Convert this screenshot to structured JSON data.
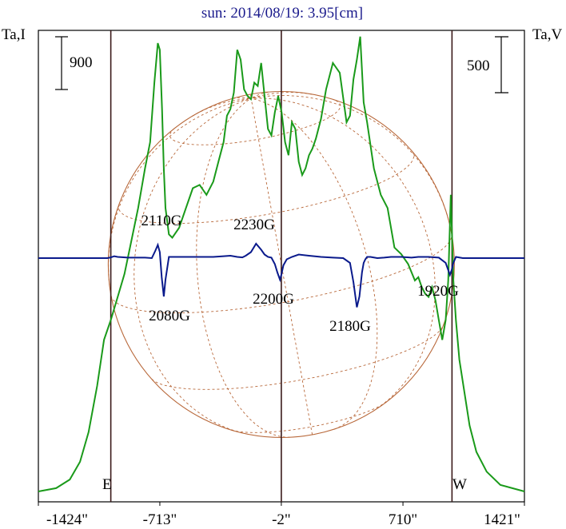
{
  "chart_data": {
    "type": "line",
    "title": "sun: 2014/08/19: 3.95[cm]",
    "ylabel_left": "Ta,I",
    "ylabel_right": "Ta,V",
    "scale_left": "900",
    "scale_right": "500",
    "xlim": [
      -1424,
      1421
    ],
    "x_ticks": [
      {
        "value": -1424,
        "label": "-1424\""
      },
      {
        "value": -713,
        "label": "-713\""
      },
      {
        "value": -2,
        "label": "-2\""
      },
      {
        "value": 710,
        "label": "710\""
      },
      {
        "value": 1421,
        "label": "1421\""
      }
    ],
    "limb_labels": {
      "east": "E",
      "west": "W"
    },
    "limb_lines": [
      -1000,
      -2,
      997
    ],
    "colors": {
      "intensity": "#1a9a1a",
      "polarization": "#0a1a8c",
      "sun_grid": "#b8683a",
      "title": "#1a1a8c",
      "axis": "#000000"
    },
    "series": [
      {
        "name": "Ta,I",
        "units": "scale 900 per bar",
        "x": [
          -1424,
          -1320,
          -1240,
          -1180,
          -1130,
          -1080,
          -1040,
          -1000,
          -960,
          -920,
          -880,
          -840,
          -800,
          -770,
          -745,
          -725,
          -713,
          -700,
          -690,
          -680,
          -660,
          -640,
          -600,
          -560,
          -520,
          -480,
          -440,
          -400,
          -370,
          -340,
          -320,
          -300,
          -280,
          -260,
          -240,
          -220,
          -200,
          -180,
          -160,
          -140,
          -120,
          -100,
          -80,
          -60,
          -40,
          -20,
          0,
          20,
          40,
          60,
          80,
          100,
          120,
          140,
          160,
          180,
          200,
          230,
          260,
          300,
          340,
          380,
          400,
          420,
          440,
          460,
          480,
          500,
          540,
          580,
          620,
          660,
          700,
          740,
          780,
          800,
          820,
          840,
          860,
          880,
          900,
          920,
          940,
          960,
          975,
          990,
          1005,
          1020,
          1040,
          1070,
          1100,
          1140,
          1200,
          1280,
          1421
        ],
        "y": [
          0.0,
          0.05,
          0.18,
          0.45,
          0.9,
          1.6,
          2.3,
          2.6,
          2.95,
          3.3,
          3.8,
          4.3,
          4.9,
          5.3,
          6.2,
          6.8,
          6.7,
          5.8,
          4.9,
          4.3,
          3.9,
          3.85,
          4.0,
          4.3,
          4.6,
          4.65,
          4.5,
          4.7,
          5.0,
          5.3,
          5.7,
          5.8,
          6.05,
          6.7,
          6.55,
          6.1,
          6.0,
          5.95,
          6.2,
          6.15,
          6.5,
          6.0,
          5.5,
          5.4,
          5.75,
          6.0,
          5.75,
          5.3,
          5.1,
          5.6,
          5.5,
          5.0,
          4.8,
          4.9,
          5.1,
          5.2,
          5.35,
          5.65,
          6.1,
          6.5,
          6.35,
          5.6,
          5.7,
          6.25,
          6.55,
          6.9,
          5.9,
          5.6,
          4.9,
          4.5,
          4.3,
          3.7,
          3.6,
          3.45,
          3.2,
          3.25,
          3.1,
          3.0,
          2.95,
          3.1,
          2.9,
          2.6,
          2.3,
          2.6,
          3.2,
          4.5,
          3.2,
          2.6,
          2.0,
          1.5,
          1.0,
          0.6,
          0.3,
          0.1,
          0.0
        ]
      },
      {
        "name": "Ta,V",
        "units": "scale 500 per bar",
        "x": [
          -1424,
          -1200,
          -1100,
          -1020,
          -1000,
          -980,
          -960,
          -900,
          -800,
          -760,
          -740,
          -725,
          -713,
          -702,
          -690,
          -680,
          -660,
          -600,
          -500,
          -400,
          -340,
          -300,
          -260,
          -230,
          -210,
          -180,
          -150,
          -120,
          -100,
          -80,
          -60,
          -40,
          -25,
          -10,
          -2,
          10,
          30,
          60,
          100,
          160,
          230,
          300,
          360,
          400,
          420,
          440,
          455,
          470,
          480,
          490,
          500,
          520,
          560,
          600,
          640,
          700,
          760,
          800,
          860,
          920,
          960,
          975,
          985,
          995,
          1005,
          1020,
          1060,
          1100,
          1200,
          1421
        ],
        "y": [
          0.0,
          0.0,
          0.0,
          0.0,
          0.03,
          0.08,
          0.05,
          0.02,
          0.02,
          0.0,
          0.3,
          0.55,
          0.25,
          -0.8,
          -1.6,
          -0.9,
          0.05,
          0.05,
          0.05,
          0.05,
          0.08,
          0.1,
          0.05,
          0.03,
          0.1,
          0.25,
          0.6,
          0.35,
          0.15,
          0.05,
          0.02,
          -0.25,
          -0.6,
          -0.9,
          -0.7,
          -0.3,
          -0.05,
          0.05,
          0.15,
          0.1,
          0.05,
          0.02,
          0.0,
          -0.2,
          -1.0,
          -2.05,
          -1.6,
          -0.6,
          -0.2,
          -0.05,
          0.05,
          0.05,
          0.0,
          0.02,
          0.05,
          0.05,
          0.02,
          0.05,
          0.05,
          0.02,
          -0.2,
          -0.5,
          -0.7,
          -0.5,
          -0.2,
          0.05,
          0.0,
          0.0,
          0.0,
          0.0
        ]
      }
    ],
    "annotations": [
      {
        "label": "2110G",
        "x": -713
      },
      {
        "label": "2080G",
        "x": -690
      },
      {
        "label": "2230G",
        "x": -150
      },
      {
        "label": "2200G",
        "x": -10
      },
      {
        "label": "2180G",
        "x": 440
      },
      {
        "label": "1920G",
        "x": 985
      }
    ],
    "grid": false,
    "legend": "none"
  }
}
